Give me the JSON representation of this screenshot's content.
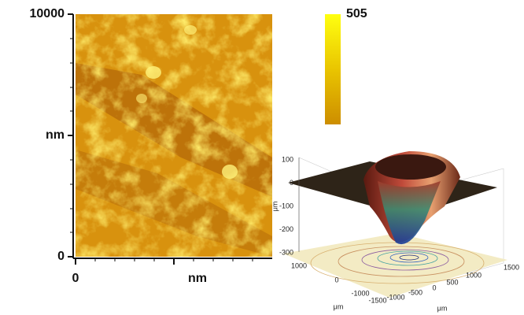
{
  "afm": {
    "y_axis": {
      "max": "10000",
      "label": "nm",
      "min": "0"
    },
    "x_axis": {
      "min": "0",
      "label": "nm"
    },
    "colorbar": {
      "max": "505"
    }
  },
  "inset": {
    "z_ticks": [
      "100",
      "0",
      "-100",
      "-200",
      "-300"
    ],
    "z_label": "μm",
    "y_ticks": [
      "1000",
      "0",
      "-1000"
    ],
    "y_label": "μm",
    "x_ticks": [
      "-1500",
      "-1000",
      "-500",
      "0",
      "500",
      "1000",
      "1500"
    ],
    "x_label": "μm"
  }
}
